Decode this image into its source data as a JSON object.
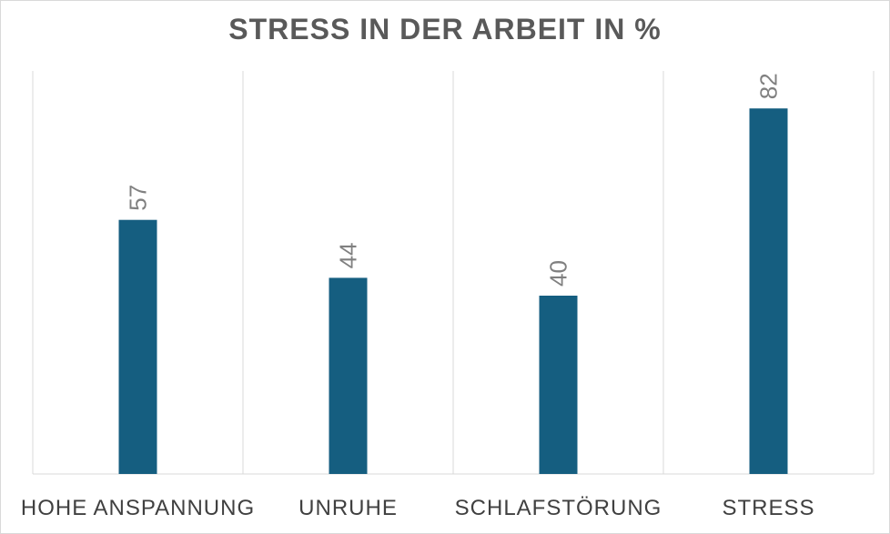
{
  "chart_data": {
    "type": "bar",
    "title": "STRESS IN DER ARBEIT IN %",
    "xlabel": "",
    "ylabel": "",
    "categories": [
      "HOHE ANSPANNUNG",
      "UNRUHE",
      "SCHLAFSTÖRUNG",
      "STRESS"
    ],
    "values": [
      57,
      44,
      40,
      82
    ],
    "ylim": [
      0,
      100
    ],
    "data_labels": true,
    "data_label_orientation": "vertical",
    "bar_color": "#155E80",
    "grid": "vertical-category-separators",
    "legend": "none"
  }
}
